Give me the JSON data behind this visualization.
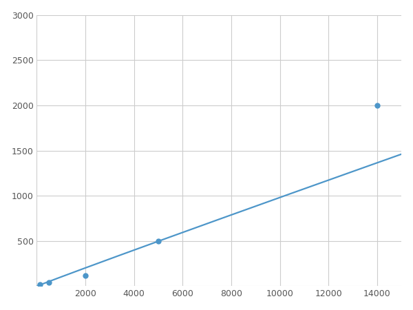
{
  "x": [
    125,
    500,
    2000,
    5000,
    14000
  ],
  "y": [
    20,
    40,
    120,
    500,
    2000
  ],
  "line_color": "#4d96c9",
  "marker_color": "#4d96c9",
  "marker_size": 5,
  "line_width": 1.6,
  "xlim": [
    0,
    15000
  ],
  "ylim": [
    0,
    3000
  ],
  "xticks": [
    0,
    2000,
    4000,
    6000,
    8000,
    10000,
    12000,
    14000
  ],
  "yticks": [
    0,
    500,
    1000,
    1500,
    2000,
    2500,
    3000
  ],
  "xtick_labels": [
    "",
    "2000",
    "4000",
    "6000",
    "8000",
    "10000",
    "12000",
    "14000"
  ],
  "ytick_labels": [
    "",
    "500",
    "1000",
    "1500",
    "2000",
    "2500",
    "3000"
  ],
  "grid_color": "#cccccc",
  "background_color": "#ffffff",
  "figsize": [
    6.0,
    4.5
  ],
  "dpi": 100
}
